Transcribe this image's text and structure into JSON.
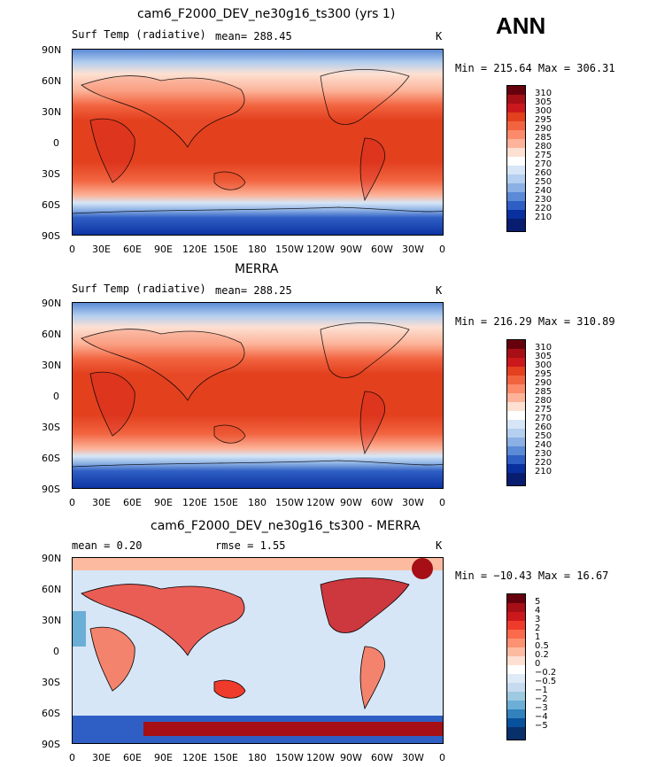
{
  "season": "ANN",
  "panels": [
    {
      "title": "cam6_F2000_DEV_ne30g16_ts300 (yrs 1)",
      "left_label": "Surf Temp (radiative)",
      "center_label": "mean= 288.45",
      "right_label": "K",
      "minmax": "Min = 215.64 Max = 306.31",
      "colorbar": [
        "310",
        "305",
        "300",
        "295",
        "290",
        "285",
        "280",
        "275",
        "270",
        "260",
        "250",
        "240",
        "230",
        "220",
        "210"
      ]
    },
    {
      "title": "MERRA",
      "left_label": "Surf Temp (radiative)",
      "center_label": "mean= 288.25",
      "right_label": "K",
      "minmax": "Min = 216.29 Max = 310.89",
      "colorbar": [
        "310",
        "305",
        "300",
        "295",
        "290",
        "285",
        "280",
        "275",
        "270",
        "260",
        "250",
        "240",
        "230",
        "220",
        "210"
      ]
    },
    {
      "title": "cam6_F2000_DEV_ne30g16_ts300 - MERRA",
      "left_label": "mean =    0.20",
      "center_label": "rmse =    1.55",
      "right_label": "K",
      "minmax": "Min = −10.43 Max =  16.67",
      "colorbar": [
        "5",
        "4",
        "3",
        "2",
        "1",
        "0.5",
        "0.2",
        "0",
        "−0.2",
        "−0.5",
        "−1",
        "−2",
        "−3",
        "−4",
        "−5"
      ]
    }
  ],
  "lat_labels": [
    "90N",
    "60N",
    "30N",
    "0",
    "30S",
    "60S",
    "90S"
  ],
  "lon_labels": [
    "0",
    "30E",
    "60E",
    "90E",
    "120E",
    "150E",
    "180",
    "150W",
    "120W",
    "90W",
    "60W",
    "30W",
    "0"
  ],
  "colors": {
    "abs_scale": [
      "#67000d",
      "#a50f15",
      "#cb181d",
      "#e3401e",
      "#f26440",
      "#fb8b6a",
      "#fcb399",
      "#fde0d2",
      "#ffffff",
      "#d6e6f7",
      "#b4cfef",
      "#8bb0e4",
      "#5b8ad6",
      "#2f5fc4",
      "#0a2f9f",
      "#081d6f"
    ],
    "diff_scale": [
      "#67000d",
      "#a50f15",
      "#cb181d",
      "#ef3b2c",
      "#fb6a4a",
      "#fc9272",
      "#fcbba1",
      "#fee0d2",
      "#ffffff",
      "#deebf7",
      "#c6dbef",
      "#9ecae1",
      "#6baed6",
      "#3182bd",
      "#08519c",
      "#08306b"
    ]
  }
}
